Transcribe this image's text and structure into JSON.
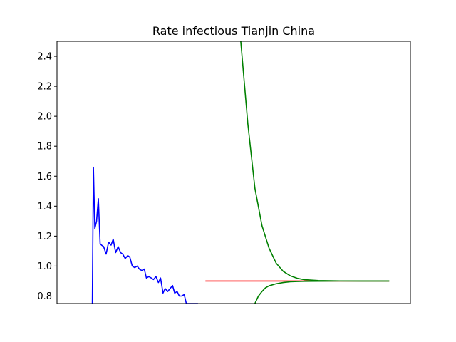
{
  "chart_data": {
    "type": "line",
    "title": "Rate infectious Tianjin China",
    "xlabel": "",
    "ylabel": "",
    "ylim": [
      0.75,
      2.5
    ],
    "xlim": [
      0,
      100
    ],
    "x_ticks_visible": false,
    "y_ticks": [
      0.8,
      1.0,
      1.2,
      1.4,
      1.6,
      1.8,
      2.0,
      2.2,
      2.4
    ],
    "y_tick_labels": [
      "0.8",
      "1.0",
      "1.2",
      "1.4",
      "1.6",
      "1.8",
      "2.0",
      "2.2",
      "2.4"
    ],
    "grid": false,
    "series": [
      {
        "color": "#0000ff",
        "x": [
          10.0,
          10.3,
          10.7,
          11.2,
          11.7,
          12.2,
          12.6,
          13.2,
          13.9,
          14.6,
          15.3,
          15.9,
          16.6,
          17.3,
          18.0,
          18.6,
          19.3,
          20.0,
          20.6,
          21.3,
          22.0,
          22.7,
          23.3,
          24.0,
          24.7,
          25.3,
          26.0,
          26.7,
          27.3,
          28.0,
          28.7,
          29.3,
          30.0,
          30.6,
          31.3,
          32.0,
          32.7,
          33.3,
          34.0,
          34.6,
          35.3,
          36.0,
          36.6,
          37.3,
          38.0,
          38.6,
          39.2,
          39.9
        ],
        "values": [
          0.75,
          1.66,
          1.25,
          1.3,
          1.45,
          1.15,
          1.14,
          1.13,
          1.08,
          1.16,
          1.14,
          1.18,
          1.09,
          1.13,
          1.09,
          1.08,
          1.05,
          1.07,
          1.06,
          1.0,
          0.99,
          1.0,
          0.98,
          0.97,
          0.98,
          0.92,
          0.93,
          0.92,
          0.91,
          0.93,
          0.89,
          0.92,
          0.82,
          0.85,
          0.83,
          0.85,
          0.87,
          0.82,
          0.83,
          0.8,
          0.8,
          0.81,
          0.75,
          0.75,
          0.75,
          0.75,
          0.75,
          0.75
        ]
      },
      {
        "color": "#ff0000",
        "x": [
          42,
          94
        ],
        "values": [
          0.9,
          0.9
        ]
      },
      {
        "color": "#008000",
        "x": [
          52,
          54,
          56,
          58,
          60,
          62,
          64,
          66,
          68,
          70,
          74,
          80,
          86,
          94
        ],
        "values": [
          2.5,
          1.95,
          1.52,
          1.27,
          1.12,
          1.02,
          0.965,
          0.935,
          0.918,
          0.909,
          0.903,
          0.901,
          0.9,
          0.9
        ]
      },
      {
        "color": "#008000",
        "x": [
          56,
          57,
          58,
          59,
          60,
          62,
          64,
          66,
          68,
          70,
          74,
          80,
          86,
          94
        ],
        "values": [
          0.75,
          0.8,
          0.83,
          0.855,
          0.868,
          0.882,
          0.89,
          0.895,
          0.897,
          0.898,
          0.899,
          0.9,
          0.9,
          0.9
        ]
      }
    ]
  }
}
